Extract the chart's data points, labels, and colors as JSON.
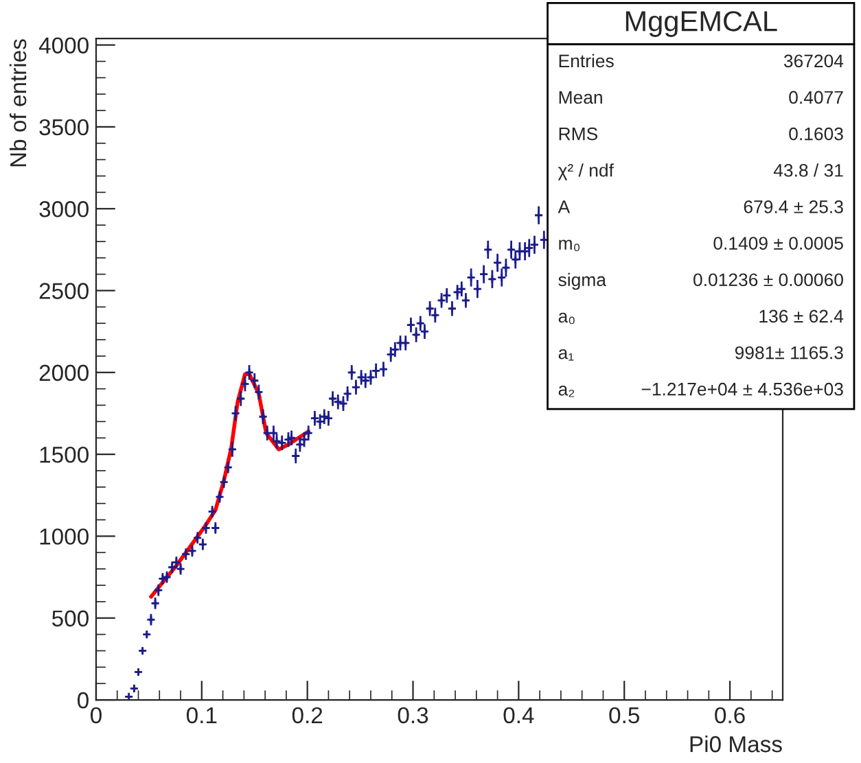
{
  "chart_data": {
    "type": "scatter",
    "xlabel": "Pi0 Mass",
    "ylabel": "Nb of entries",
    "xlim": [
      0,
      0.65
    ],
    "xticks": [
      0,
      0.1,
      0.2,
      0.3,
      0.4,
      0.5,
      0.6
    ],
    "ylim": [
      0,
      4040
    ],
    "yticks": [
      0,
      500,
      1000,
      1500,
      2000,
      2500,
      3000,
      3500,
      4000
    ],
    "grid": false,
    "series": [
      {
        "color": "#1c1c8c",
        "marker": "cross",
        "x": [
          0.031,
          0.036,
          0.04,
          0.044,
          0.048,
          0.052,
          0.056,
          0.059,
          0.063,
          0.067,
          0.072,
          0.076,
          0.08,
          0.085,
          0.091,
          0.096,
          0.101,
          0.104,
          0.11,
          0.113,
          0.117,
          0.121,
          0.125,
          0.129,
          0.132,
          0.137,
          0.141,
          0.145,
          0.15,
          0.154,
          0.158,
          0.162,
          0.168,
          0.171,
          0.176,
          0.182,
          0.185,
          0.189,
          0.193,
          0.197,
          0.201,
          0.207,
          0.212,
          0.216,
          0.22,
          0.224,
          0.229,
          0.234,
          0.238,
          0.242,
          0.246,
          0.251,
          0.255,
          0.26,
          0.265,
          0.272,
          0.279,
          0.283,
          0.288,
          0.293,
          0.298,
          0.303,
          0.307,
          0.311,
          0.316,
          0.321,
          0.327,
          0.332,
          0.337,
          0.342,
          0.346,
          0.35,
          0.355,
          0.361,
          0.367,
          0.371,
          0.375,
          0.38,
          0.384,
          0.388,
          0.393,
          0.397,
          0.401,
          0.406,
          0.41,
          0.415,
          0.419,
          0.424
        ],
        "values": [
          20,
          70,
          170,
          300,
          400,
          490,
          590,
          670,
          740,
          750,
          810,
          840,
          800,
          890,
          910,
          990,
          950,
          1050,
          1150,
          1050,
          1240,
          1330,
          1420,
          1530,
          1750,
          1840,
          1930,
          2000,
          1950,
          1880,
          1730,
          1630,
          1630,
          1580,
          1570,
          1590,
          1600,
          1490,
          1560,
          1590,
          1630,
          1720,
          1700,
          1730,
          1720,
          1840,
          1820,
          1810,
          1870,
          2000,
          1910,
          1970,
          1950,
          1970,
          2010,
          2020,
          2110,
          2140,
          2180,
          2180,
          2290,
          2230,
          2300,
          2250,
          2390,
          2350,
          2440,
          2470,
          2390,
          2490,
          2510,
          2440,
          2580,
          2510,
          2600,
          2750,
          2570,
          2670,
          2580,
          2640,
          2750,
          2690,
          2740,
          2740,
          2760,
          2780,
          2960,
          2810
        ],
        "errors": [
          null,
          20,
          20,
          20,
          20,
          35,
          35,
          35,
          35,
          35,
          35,
          35,
          35,
          35,
          35,
          35,
          35,
          35,
          35,
          35,
          35,
          35,
          35,
          45,
          45,
          45,
          45,
          45,
          45,
          45,
          45,
          45,
          45,
          45,
          45,
          45,
          45,
          45,
          45,
          45,
          45,
          45,
          45,
          45,
          45,
          45,
          45,
          45,
          45,
          45,
          45,
          45,
          45,
          45,
          45,
          45,
          45,
          45,
          45,
          45,
          45,
          45,
          45,
          45,
          45,
          45,
          45,
          45,
          45,
          45,
          45,
          45,
          55,
          55,
          55,
          55,
          55,
          55,
          55,
          55,
          55,
          55,
          55,
          55,
          55,
          55,
          55,
          55
        ],
        "xerrors": [
          0.002,
          0.002,
          0.002,
          0.002,
          0.002,
          0.002,
          0.002,
          0.002,
          0.002,
          0.002,
          0.002,
          0.002,
          0.002,
          0.002,
          0.002,
          0.002,
          0.002,
          0.002,
          0.002,
          0.002,
          0.002,
          0.002,
          0.002,
          0.002,
          0.002,
          0.002,
          0.002,
          0.002,
          0.002,
          0.002,
          0.002,
          0.002,
          0.002,
          0.002,
          0.002,
          0.002,
          0.002,
          0.002,
          0.002,
          0.002,
          0.002,
          0.002,
          0.002,
          0.002,
          0.002,
          0.002,
          0.002,
          0.002,
          0.002,
          0.002,
          0.002,
          0.002,
          0.002,
          0.002,
          0.002,
          0.002,
          0.002,
          0.002,
          0.002,
          0.002,
          0.002,
          0.002,
          0.002,
          0.002,
          0.002,
          0.002,
          0.002,
          0.002,
          0.002,
          0.002,
          0.002,
          0.002,
          0.002,
          0.002,
          0.002,
          0.002,
          0.002,
          0.002,
          0.002,
          0.002,
          0.002,
          0.002,
          0.002,
          0.002,
          0.002,
          0.002,
          0.002,
          0.002
        ]
      },
      {
        "type": "line",
        "color": "#ff0000",
        "line_style": "solid",
        "x": [
          0.052,
          0.076,
          0.103,
          0.113,
          0.121,
          0.128,
          0.134,
          0.141,
          0.145,
          0.154,
          0.161,
          0.173,
          0.182,
          0.201
        ],
        "values": [
          630,
          820,
          1060,
          1160,
          1340,
          1540,
          1820,
          1990,
          1990,
          1870,
          1630,
          1530,
          1560,
          1640
        ]
      }
    ],
    "annotations": [
      "MggEMCAL",
      "Entries",
      "367204",
      "Mean",
      "0.4077",
      "RMS",
      "0.1603",
      "χ² / ndf",
      "43.8 / 31",
      "A",
      "679.4 ± 25.3",
      "m₀",
      "0.1409 ± 0.0005",
      "sigma",
      "0.01236 ± 0.00060",
      "a₀",
      "136 ± 62.4",
      "a₁",
      "9981± 1165.3",
      "a₂",
      "−1.217e+04 ± 4.536e+03"
    ]
  }
}
